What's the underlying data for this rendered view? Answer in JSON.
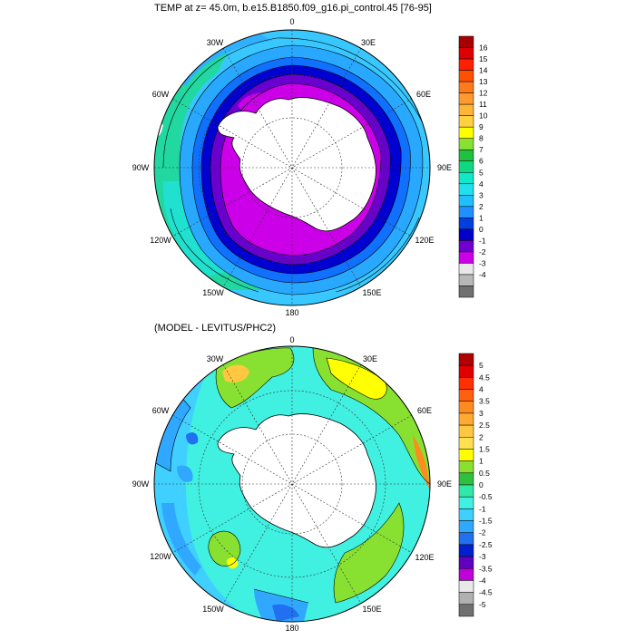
{
  "top_panel": {
    "title": "TEMP at z=  45.0m, b.e15.B1850.f09_g16.pi_control.45 [76-95]",
    "lon_labels": [
      "0",
      "30E",
      "60E",
      "90E",
      "120E",
      "150E",
      "180",
      "150W",
      "120W",
      "90W",
      "60W",
      "30W"
    ],
    "colorbar": {
      "labels": [
        "16",
        "15",
        "14",
        "13",
        "12",
        "11",
        "10",
        "9",
        "8",
        "7",
        "6",
        "5",
        "4",
        "3",
        "2",
        "1",
        "0",
        "-1",
        "-2",
        "-3",
        "-4"
      ],
      "colors": [
        "#a80000",
        "#dd0000",
        "#ff2000",
        "#ff5000",
        "#ff7a1a",
        "#ff9a30",
        "#ffb638",
        "#ffd040",
        "#ffff00",
        "#88e030",
        "#20c040",
        "#10d880",
        "#10e8c8",
        "#20e0f0",
        "#20c0ff",
        "#2090ff",
        "#0040e0",
        "#0000c8",
        "#7000d0",
        "#cc00e8",
        "#e8e8e8",
        "#b8b8b8",
        "#707070"
      ]
    }
  },
  "bottom_panel": {
    "title": "(MODEL - LEVITUS/PHC2)",
    "lon_labels": [
      "0",
      "30E",
      "60E",
      "90E",
      "120E",
      "150E",
      "180",
      "150W",
      "120W",
      "90W",
      "60W",
      "30W"
    ],
    "colorbar": {
      "labels": [
        "5",
        "4.5",
        "4",
        "3.5",
        "3",
        "2.5",
        "2",
        "1.5",
        "1",
        "0.5",
        "0",
        "-0.5",
        "-1",
        "-1.5",
        "-2",
        "-2.5",
        "-3",
        "-3.5",
        "-4",
        "-4.5",
        "-5"
      ],
      "colors": [
        "#b00000",
        "#e00000",
        "#ff3000",
        "#ff6010",
        "#ff8a20",
        "#ffaa30",
        "#ffc840",
        "#ffe050",
        "#ffff00",
        "#88e030",
        "#30c040",
        "#30e8a8",
        "#40f0e0",
        "#40d0ff",
        "#30a8ff",
        "#2070f0",
        "#0020d0",
        "#6000c0",
        "#c000d8",
        "#e8e8e8",
        "#b0b0b0",
        "#707070"
      ]
    }
  },
  "map_colors": {
    "land": "#ffffff",
    "coast": "#000000",
    "grid": "#333333"
  }
}
